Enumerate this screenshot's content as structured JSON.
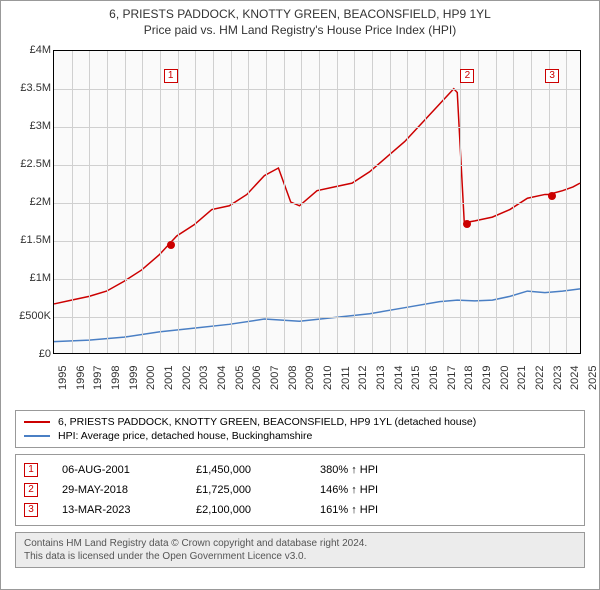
{
  "title": {
    "line1": "6, PRIESTS PADDOCK, KNOTTY GREEN, BEACONSFIELD, HP9 1YL",
    "line2": "Price paid vs. HM Land Registry's House Price Index (HPI)",
    "fontsize": 12,
    "color": "#333333"
  },
  "chart": {
    "type": "line",
    "background_color": "#fafafa",
    "grid_color": "#d0d0d0",
    "border_color": "#000000",
    "x": {
      "min": 1995,
      "max": 2025,
      "ticks": [
        1995,
        1996,
        1997,
        1998,
        1999,
        2000,
        2001,
        2002,
        2003,
        2004,
        2005,
        2006,
        2007,
        2008,
        2009,
        2010,
        2011,
        2012,
        2013,
        2014,
        2015,
        2016,
        2017,
        2018,
        2019,
        2020,
        2021,
        2022,
        2023,
        2024,
        2025
      ],
      "label_fontsize": 11
    },
    "y": {
      "min": 0,
      "max": 4000000,
      "ticks": [
        0,
        500000,
        1000000,
        1500000,
        2000000,
        2500000,
        3000000,
        3500000,
        4000000
      ],
      "tick_labels": [
        "£0",
        "£500K",
        "£1M",
        "£1.5M",
        "£2M",
        "£2.5M",
        "£3M",
        "£3.5M",
        "£4M"
      ],
      "label_fontsize": 11
    },
    "series": [
      {
        "id": "property",
        "color": "#cc0000",
        "line_width": 1.5,
        "points": [
          [
            1995,
            650000
          ],
          [
            1996,
            700000
          ],
          [
            1997,
            750000
          ],
          [
            1998,
            820000
          ],
          [
            1999,
            950000
          ],
          [
            2000,
            1100000
          ],
          [
            2001,
            1300000
          ],
          [
            2001.6,
            1450000
          ],
          [
            2002,
            1550000
          ],
          [
            2003,
            1700000
          ],
          [
            2004,
            1900000
          ],
          [
            2005,
            1950000
          ],
          [
            2006,
            2100000
          ],
          [
            2007,
            2350000
          ],
          [
            2007.8,
            2450000
          ],
          [
            2008.5,
            2000000
          ],
          [
            2009,
            1950000
          ],
          [
            2010,
            2150000
          ],
          [
            2011,
            2200000
          ],
          [
            2012,
            2250000
          ],
          [
            2013,
            2400000
          ],
          [
            2014,
            2600000
          ],
          [
            2015,
            2800000
          ],
          [
            2016,
            3050000
          ],
          [
            2017,
            3300000
          ],
          [
            2017.8,
            3500000
          ],
          [
            2018,
            3450000
          ],
          [
            2018.4,
            1725000
          ],
          [
            2019,
            1750000
          ],
          [
            2020,
            1800000
          ],
          [
            2021,
            1900000
          ],
          [
            2022,
            2050000
          ],
          [
            2023,
            2100000
          ],
          [
            2023.2,
            2100000
          ],
          [
            2024,
            2150000
          ],
          [
            2024.6,
            2200000
          ],
          [
            2025,
            2250000
          ]
        ]
      },
      {
        "id": "hpi",
        "color": "#4a7fc4",
        "line_width": 1.5,
        "points": [
          [
            1995,
            150000
          ],
          [
            1997,
            170000
          ],
          [
            1999,
            210000
          ],
          [
            2001,
            280000
          ],
          [
            2003,
            330000
          ],
          [
            2005,
            380000
          ],
          [
            2007,
            450000
          ],
          [
            2009,
            420000
          ],
          [
            2011,
            470000
          ],
          [
            2013,
            520000
          ],
          [
            2015,
            600000
          ],
          [
            2017,
            680000
          ],
          [
            2018,
            700000
          ],
          [
            2019,
            690000
          ],
          [
            2020,
            700000
          ],
          [
            2021,
            750000
          ],
          [
            2022,
            820000
          ],
          [
            2023,
            800000
          ],
          [
            2024,
            820000
          ],
          [
            2025,
            850000
          ]
        ]
      }
    ],
    "sale_markers": [
      {
        "n": "1",
        "year": 2001.6,
        "price": 1450000
      },
      {
        "n": "2",
        "year": 2018.4,
        "price": 1725000
      },
      {
        "n": "3",
        "year": 2023.2,
        "price": 2100000
      }
    ]
  },
  "legend": {
    "items": [
      {
        "color": "#cc0000",
        "label": "6, PRIESTS PADDOCK, KNOTTY GREEN, BEACONSFIELD, HP9 1YL (detached house)"
      },
      {
        "color": "#4a7fc4",
        "label": "HPI: Average price, detached house, Buckinghamshire"
      }
    ]
  },
  "sales": [
    {
      "n": "1",
      "date": "06-AUG-2001",
      "price": "£1,450,000",
      "hpi": "380% ↑ HPI"
    },
    {
      "n": "2",
      "date": "29-MAY-2018",
      "price": "£1,725,000",
      "hpi": "146% ↑ HPI"
    },
    {
      "n": "3",
      "date": "13-MAR-2023",
      "price": "£2,100,000",
      "hpi": "161% ↑ HPI"
    }
  ],
  "footer": {
    "line1": "Contains HM Land Registry data © Crown copyright and database right 2024.",
    "line2": "This data is licensed under the Open Government Licence v3.0."
  }
}
